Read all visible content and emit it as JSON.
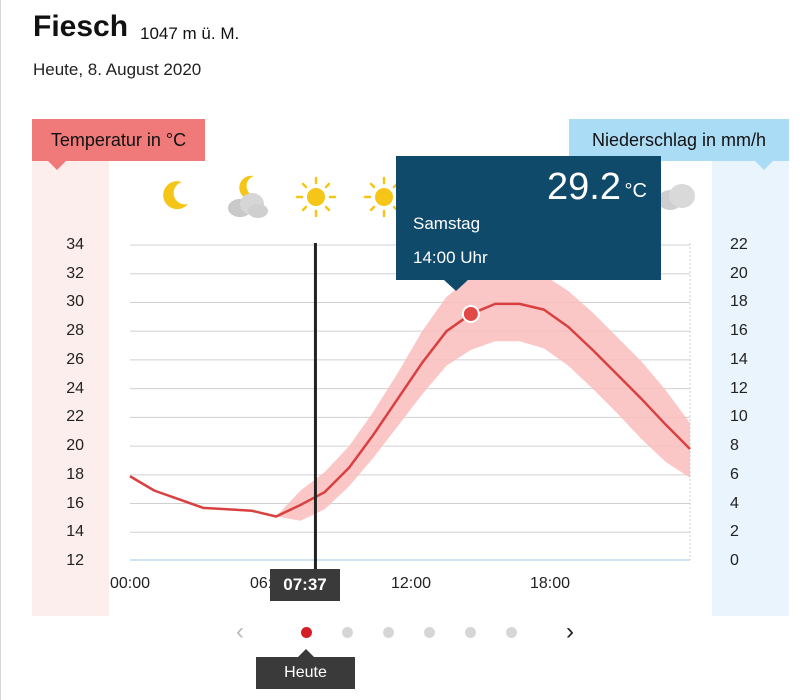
{
  "header": {
    "location": "Fiesch",
    "elevation": "1047 m ü. M.",
    "date": "Heute, 8. August 2020"
  },
  "axes": {
    "left_label": "Temperatur in °C",
    "right_label": "Niederschlag in mm/h",
    "left_ticks": [
      "34",
      "32",
      "30",
      "28",
      "26",
      "24",
      "22",
      "20",
      "18",
      "16",
      "14",
      "12"
    ],
    "right_ticks": [
      "22",
      "20",
      "18",
      "16",
      "14",
      "12",
      "10",
      "8",
      "6",
      "4",
      "2",
      "0"
    ],
    "x_ticks": [
      "00:00",
      "06:00",
      "12:00",
      "18:00"
    ]
  },
  "weather_icons": [
    "moon-icon",
    "moon-cloud-icon",
    "sun-icon",
    "sun-icon",
    "sun-icon",
    "sun-icon",
    "cloud-icon"
  ],
  "now_marker": {
    "time": "07:37"
  },
  "tooltip": {
    "value": "29.2",
    "unit": "°C",
    "day": "Samstag",
    "time": "14:00 Uhr"
  },
  "pager": {
    "pages": 6,
    "active": 0,
    "active_label": "Heute"
  },
  "colors": {
    "temp_line": "#d94040",
    "temp_band": "#f9bcbc",
    "temp_axis": "#f07a7a",
    "precip_axis": "#abdcf6",
    "tooltip": "#0f4a6b",
    "active_dot": "#d41f26"
  },
  "chart_data": {
    "type": "line",
    "x_unit": "hours",
    "xlim": [
      0,
      23
    ],
    "ylim": [
      12,
      34
    ],
    "y2lim": [
      0,
      22
    ],
    "series": [
      {
        "name": "Temperatur in °C",
        "x": [
          0,
          1,
          2,
          3,
          4,
          5,
          6,
          7,
          8,
          9,
          10,
          11,
          12,
          13,
          14,
          15,
          16,
          17,
          18,
          19,
          20,
          21,
          22,
          23
        ],
        "y": [
          17.9,
          16.9,
          16.3,
          15.7,
          15.6,
          15.5,
          15.1,
          15.9,
          16.8,
          18.5,
          20.8,
          23.3,
          25.8,
          28.0,
          29.2,
          29.9,
          29.9,
          29.5,
          28.3,
          26.7,
          25.0,
          23.3,
          21.5,
          19.8
        ]
      }
    ],
    "band": {
      "x": [
        6,
        7,
        8,
        9,
        10,
        11,
        12,
        13,
        14,
        15,
        16,
        17,
        18,
        19,
        20,
        21,
        22,
        23
      ],
      "low": [
        15.1,
        14.8,
        15.6,
        17.2,
        19.2,
        21.4,
        23.6,
        25.6,
        26.7,
        27.3,
        27.3,
        26.8,
        25.6,
        24.0,
        22.3,
        20.5,
        18.9,
        17.8
      ],
      "high": [
        15.1,
        16.9,
        18.2,
        20.0,
        22.4,
        25.1,
        28.0,
        30.4,
        31.7,
        32.4,
        32.4,
        31.9,
        30.8,
        29.3,
        27.6,
        25.9,
        23.9,
        21.6
      ]
    },
    "highlight": {
      "x": 14,
      "y": 29.2
    },
    "now_x": 7.6167
  }
}
